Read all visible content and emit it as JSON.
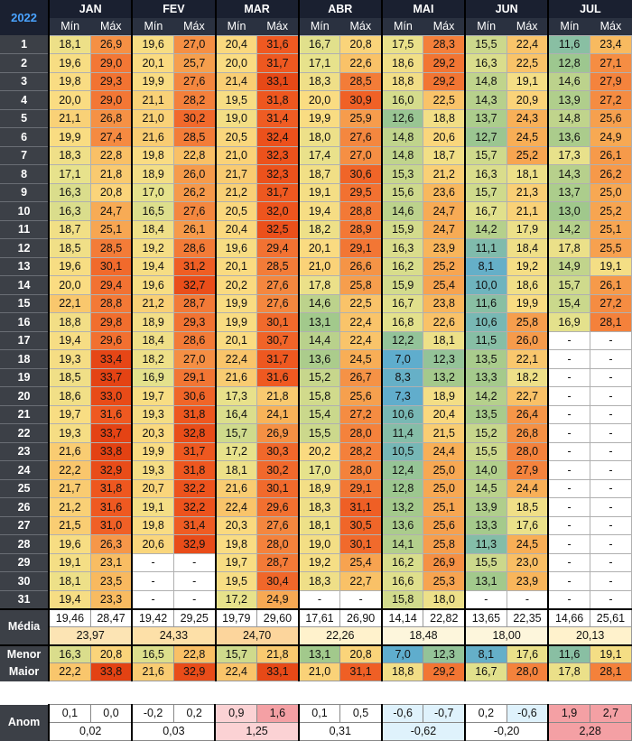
{
  "title": "2022",
  "months": [
    "JAN",
    "FEV",
    "MAR",
    "ABR",
    "MAI",
    "JUN",
    "JUL"
  ],
  "sub_headers": {
    "min": "Mín",
    "max": "Máx"
  },
  "days": [
    "1",
    "2",
    "3",
    "4",
    "5",
    "6",
    "7",
    "8",
    "9",
    "10",
    "11",
    "12",
    "13",
    "14",
    "15",
    "16",
    "17",
    "18",
    "19",
    "20",
    "21",
    "22",
    "23",
    "24",
    "25",
    "26",
    "27",
    "28",
    "29",
    "30",
    "31"
  ],
  "data": [
    [
      "18,1",
      "26,9",
      "19,6",
      "27,0",
      "20,4",
      "31,6",
      "16,7",
      "20,8",
      "17,5",
      "28,3",
      "15,5",
      "22,4",
      "11,6",
      "23,4"
    ],
    [
      "19,6",
      "29,0",
      "20,1",
      "25,7",
      "20,0",
      "31,7",
      "17,1",
      "22,6",
      "18,6",
      "29,2",
      "16,3",
      "22,5",
      "12,8",
      "27,1"
    ],
    [
      "19,8",
      "29,3",
      "19,9",
      "27,6",
      "21,4",
      "33,1",
      "18,3",
      "28,5",
      "18,8",
      "29,2",
      "14,8",
      "19,1",
      "14,6",
      "27,9"
    ],
    [
      "20,0",
      "29,0",
      "21,1",
      "28,2",
      "19,5",
      "31,8",
      "20,0",
      "30,9",
      "16,0",
      "22,5",
      "14,3",
      "20,9",
      "13,9",
      "27,2"
    ],
    [
      "21,1",
      "26,8",
      "21,0",
      "30,2",
      "19,0",
      "31,4",
      "19,9",
      "25,9",
      "12,6",
      "18,8",
      "13,7",
      "24,3",
      "14,8",
      "25,6"
    ],
    [
      "19,9",
      "27,4",
      "21,6",
      "28,5",
      "20,5",
      "32,4",
      "18,0",
      "27,6",
      "14,8",
      "20,6",
      "12,7",
      "24,5",
      "13,6",
      "24,9"
    ],
    [
      "18,3",
      "22,8",
      "19,8",
      "22,8",
      "21,0",
      "32,3",
      "17,4",
      "27,0",
      "14,8",
      "18,7",
      "15,7",
      "25,2",
      "17,3",
      "26,1"
    ],
    [
      "17,1",
      "21,8",
      "18,9",
      "26,0",
      "21,7",
      "32,3",
      "18,7",
      "30,6",
      "15,3",
      "21,2",
      "16,3",
      "18,1",
      "14,3",
      "26,2"
    ],
    [
      "16,3",
      "20,8",
      "17,0",
      "26,2",
      "21,2",
      "31,7",
      "19,1",
      "29,5",
      "15,6",
      "23,6",
      "15,7",
      "21,3",
      "13,7",
      "25,0"
    ],
    [
      "16,3",
      "24,7",
      "16,5",
      "27,6",
      "20,5",
      "32,0",
      "19,4",
      "28,8",
      "14,6",
      "24,7",
      "16,7",
      "21,1",
      "13,0",
      "25,2"
    ],
    [
      "18,7",
      "25,1",
      "18,4",
      "26,1",
      "20,4",
      "32,5",
      "18,2",
      "28,9",
      "15,9",
      "24,7",
      "14,2",
      "17,9",
      "14,2",
      "25,1"
    ],
    [
      "18,5",
      "28,5",
      "19,2",
      "28,6",
      "19,6",
      "29,4",
      "20,1",
      "29,1",
      "16,3",
      "23,9",
      "11,1",
      "18,4",
      "17,8",
      "25,5"
    ],
    [
      "19,6",
      "30,1",
      "19,4",
      "31,2",
      "20,1",
      "28,5",
      "21,0",
      "26,6",
      "16,2",
      "25,2",
      "8,1",
      "19,2",
      "14,9",
      "19,1"
    ],
    [
      "20,0",
      "29,4",
      "19,6",
      "32,7",
      "20,2",
      "27,6",
      "17,8",
      "25,8",
      "15,9",
      "25,4",
      "10,0",
      "18,6",
      "15,7",
      "26,1"
    ],
    [
      "22,1",
      "28,8",
      "21,2",
      "28,7",
      "19,9",
      "27,6",
      "14,6",
      "22,5",
      "16,7",
      "23,8",
      "11,6",
      "19,9",
      "15,4",
      "27,2"
    ],
    [
      "18,8",
      "29,8",
      "18,9",
      "29,3",
      "19,9",
      "30,1",
      "13,1",
      "22,4",
      "16,8",
      "22,6",
      "10,6",
      "25,8",
      "16,9",
      "28,1"
    ],
    [
      "19,4",
      "29,6",
      "18,4",
      "28,6",
      "20,1",
      "30,7",
      "14,4",
      "22,4",
      "12,2",
      "18,1",
      "11,5",
      "26,0",
      "-",
      "-"
    ],
    [
      "19,3",
      "33,4",
      "18,2",
      "27,0",
      "22,4",
      "31,7",
      "13,6",
      "24,5",
      "7,0",
      "12,3",
      "13,5",
      "22,1",
      "-",
      "-"
    ],
    [
      "18,5",
      "33,7",
      "16,9",
      "29,1",
      "21,6",
      "31,6",
      "15,2",
      "26,7",
      "8,3",
      "13,2",
      "13,3",
      "18,2",
      "-",
      "-"
    ],
    [
      "18,6",
      "33,0",
      "19,7",
      "30,6",
      "17,3",
      "21,8",
      "15,8",
      "25,6",
      "7,3",
      "18,9",
      "14,2",
      "22,7",
      "-",
      "-"
    ],
    [
      "19,7",
      "31,6",
      "19,3",
      "31,8",
      "16,4",
      "24,1",
      "15,4",
      "27,2",
      "10,6",
      "20,4",
      "13,5",
      "26,4",
      "-",
      "-"
    ],
    [
      "19,3",
      "33,7",
      "20,3",
      "32,8",
      "15,7",
      "26,9",
      "15,5",
      "28,0",
      "11,4",
      "21,5",
      "15,2",
      "26,8",
      "-",
      "-"
    ],
    [
      "21,6",
      "33,8",
      "19,9",
      "31,7",
      "17,2",
      "30,3",
      "20,2",
      "28,2",
      "10,5",
      "24,4",
      "15,5",
      "28,0",
      "-",
      "-"
    ],
    [
      "22,2",
      "32,9",
      "19,3",
      "31,8",
      "18,1",
      "30,2",
      "17,0",
      "28,0",
      "12,4",
      "25,0",
      "14,0",
      "27,9",
      "-",
      "-"
    ],
    [
      "21,7",
      "31,8",
      "20,7",
      "32,2",
      "21,6",
      "30,1",
      "18,9",
      "29,1",
      "12,8",
      "25,0",
      "14,5",
      "24,4",
      "-",
      "-"
    ],
    [
      "21,2",
      "31,6",
      "19,1",
      "32,2",
      "22,4",
      "29,6",
      "18,3",
      "31,1",
      "13,2",
      "25,1",
      "13,9",
      "18,5",
      "-",
      "-"
    ],
    [
      "21,5",
      "31,0",
      "19,8",
      "31,4",
      "20,3",
      "27,6",
      "18,1",
      "30,5",
      "13,6",
      "25,6",
      "13,3",
      "17,6",
      "-",
      "-"
    ],
    [
      "19,6",
      "26,3",
      "20,6",
      "32,9",
      "19,8",
      "28,0",
      "19,0",
      "30,1",
      "14,1",
      "25,8",
      "11,3",
      "24,5",
      "-",
      "-"
    ],
    [
      "19,1",
      "23,1",
      "-",
      "-",
      "19,7",
      "28,7",
      "19,2",
      "25,4",
      "16,2",
      "26,9",
      "15,5",
      "23,0",
      "-",
      "-"
    ],
    [
      "18,1",
      "23,5",
      "-",
      "-",
      "19,5",
      "30,4",
      "18,3",
      "22,7",
      "16,6",
      "25,3",
      "13,1",
      "23,9",
      "-",
      "-"
    ],
    [
      "19,4",
      "23,3",
      "-",
      "-",
      "17,2",
      "24,9",
      "-",
      "-",
      "15,8",
      "18,0",
      "-",
      "-",
      "-",
      "-"
    ]
  ],
  "summary": {
    "media_label": "Média",
    "media": [
      "19,46",
      "28,47",
      "19,42",
      "29,25",
      "19,79",
      "29,60",
      "17,61",
      "26,90",
      "14,14",
      "22,82",
      "13,65",
      "22,35",
      "14,66",
      "25,61"
    ],
    "media_avg": [
      "23,97",
      "24,33",
      "24,70",
      "22,26",
      "18,48",
      "18,00",
      "20,13"
    ],
    "menor_label": "Menor",
    "menor": [
      "16,3",
      "20,8",
      "16,5",
      "22,8",
      "15,7",
      "21,8",
      "13,1",
      "20,8",
      "7,0",
      "12,3",
      "8,1",
      "17,6",
      "11,6",
      "19,1"
    ],
    "maior_label": "Maior",
    "maior": [
      "22,2",
      "33,8",
      "21,6",
      "32,9",
      "22,4",
      "33,1",
      "21,0",
      "31,1",
      "18,8",
      "29,2",
      "16,7",
      "28,0",
      "17,8",
      "28,1"
    ]
  },
  "anom": {
    "label": "Anom",
    "values": [
      "0,1",
      "0,0",
      "-0,2",
      "0,2",
      "0,9",
      "1,6",
      "0,1",
      "0,5",
      "-0,6",
      "-0,7",
      "0,2",
      "-0,6",
      "1,9",
      "2,7"
    ],
    "avg": [
      "0,02",
      "0,03",
      "1,25",
      "0,31",
      "-0,62",
      "-0,20",
      "2,28"
    ]
  }
}
